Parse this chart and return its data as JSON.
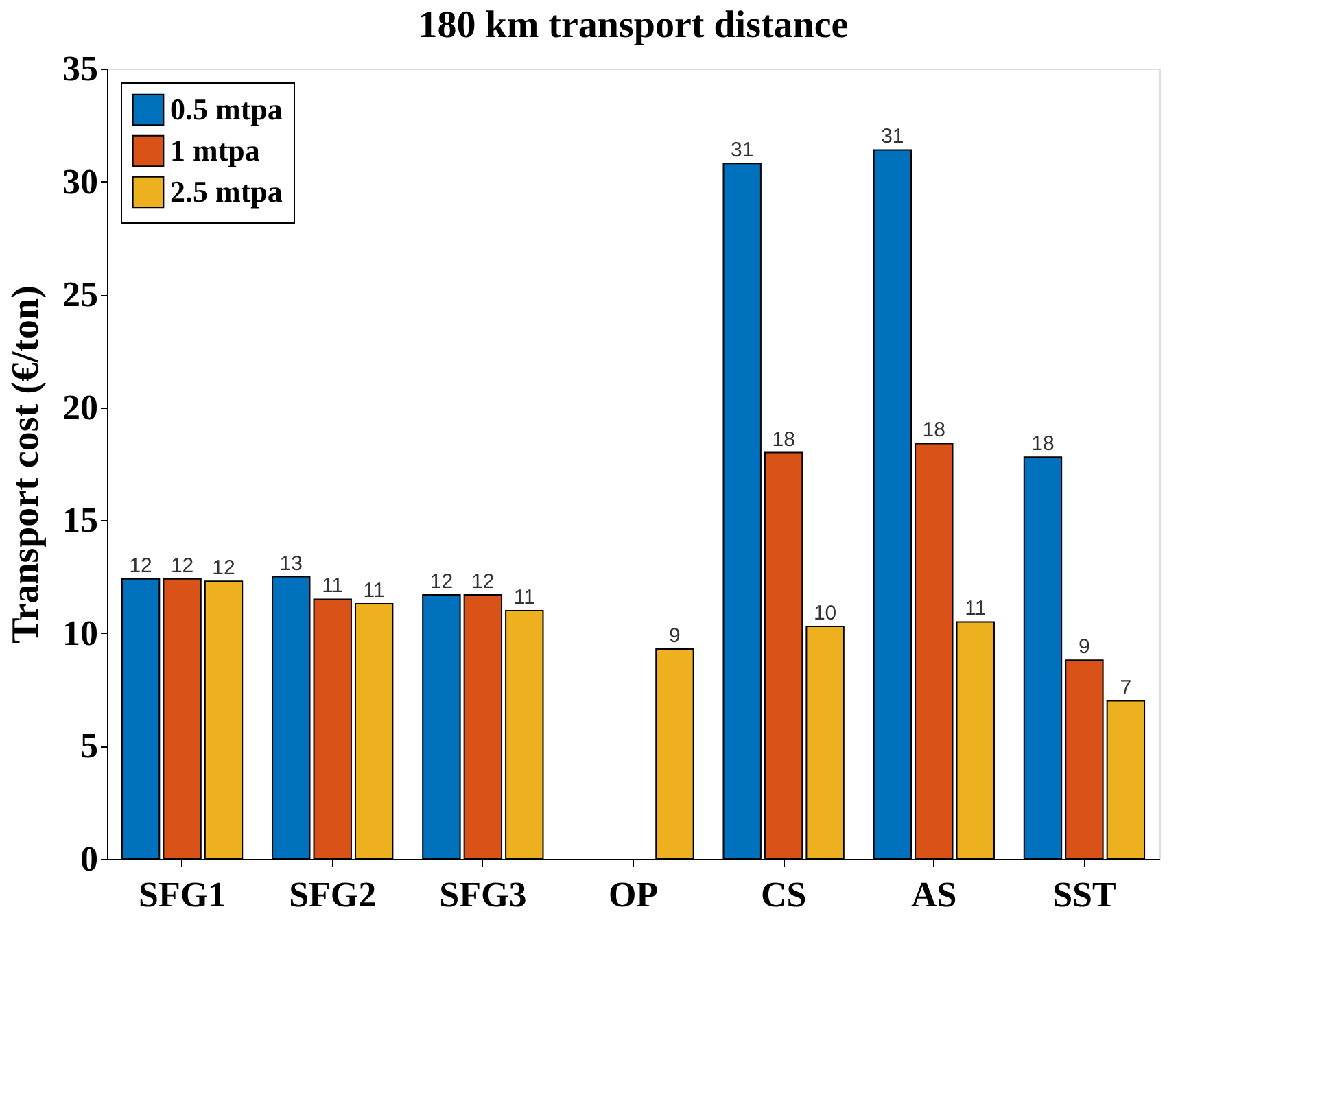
{
  "chart_data": {
    "type": "bar",
    "title": "180 km transport distance",
    "ylabel": "Transport cost (€/ton)",
    "categories": [
      "SFG1",
      "SFG2",
      "SFG3",
      "OP",
      "CS",
      "AS",
      "SST"
    ],
    "series": [
      {
        "name": "0.5 mtpa",
        "color": "#0072bd",
        "values": [
          12.4,
          12.5,
          11.7,
          null,
          30.8,
          31.4,
          17.8
        ],
        "value_labels": [
          "12",
          "13",
          "12",
          null,
          "31",
          "31",
          "18"
        ]
      },
      {
        "name": "1 mtpa",
        "color": "#d95319",
        "values": [
          12.4,
          11.5,
          11.7,
          null,
          18.0,
          18.4,
          8.8
        ],
        "value_labels": [
          "12",
          "11",
          "12",
          null,
          "18",
          "18",
          "9"
        ]
      },
      {
        "name": "2.5 mtpa",
        "color": "#edb120",
        "values": [
          12.3,
          11.3,
          11.0,
          9.3,
          10.3,
          10.5,
          7.0
        ],
        "value_labels": [
          "12",
          "11",
          "11",
          "9",
          "10",
          "11",
          "7"
        ]
      }
    ],
    "ylim": [
      0,
      35
    ],
    "yticks": [
      0,
      5,
      10,
      15,
      20,
      25,
      30,
      35
    ],
    "grid": false,
    "legend": "top left"
  }
}
